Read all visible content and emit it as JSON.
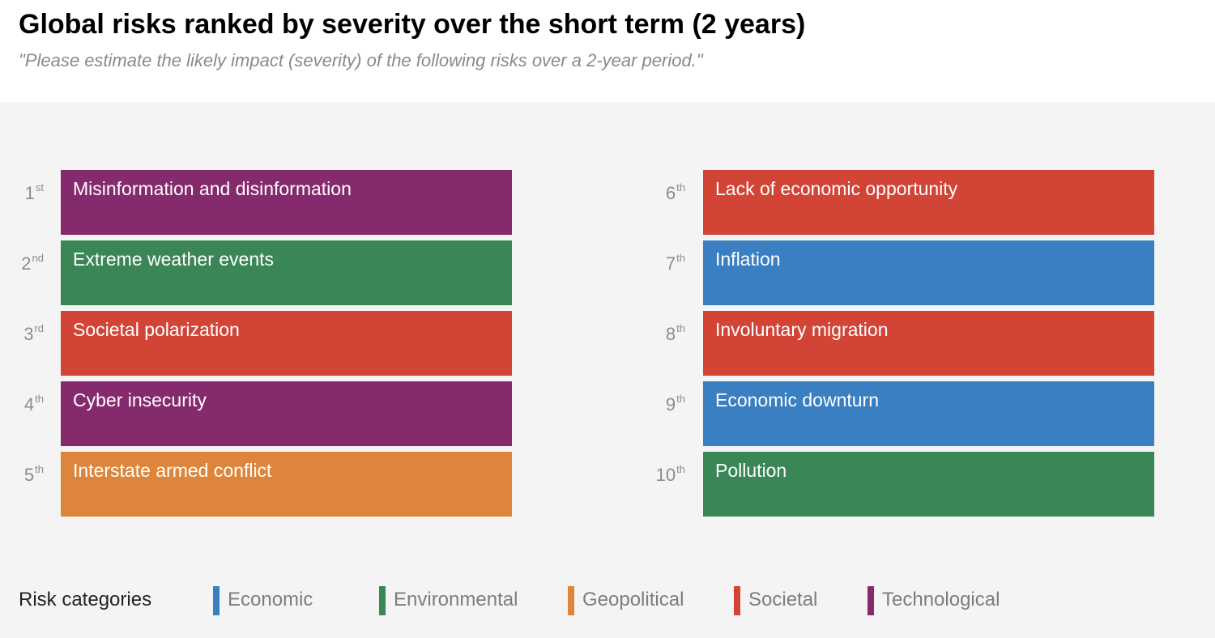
{
  "title": "Global risks ranked by severity over the short term (2 years)",
  "subtitle": "\"Please estimate the likely impact (severity) of the following risks over a 2-year period.\"",
  "colors": {
    "Economic": "#3a7fc1",
    "Environmental": "#3a8656",
    "Geopolitical": "#dc853b",
    "Societal": "#d24436",
    "Technological": "#852b6d"
  },
  "chart_data": {
    "type": "table",
    "title": "Global risks ranked by severity over the short term (2 years)",
    "risks": [
      {
        "rank": 1,
        "rank_num": "1",
        "rank_suffix": "st",
        "label": "Misinformation and disinformation",
        "category": "Technological"
      },
      {
        "rank": 2,
        "rank_num": "2",
        "rank_suffix": "nd",
        "label": "Extreme weather events",
        "category": "Environmental"
      },
      {
        "rank": 3,
        "rank_num": "3",
        "rank_suffix": "rd",
        "label": "Societal polarization",
        "category": "Societal"
      },
      {
        "rank": 4,
        "rank_num": "4",
        "rank_suffix": "th",
        "label": "Cyber insecurity",
        "category": "Technological"
      },
      {
        "rank": 5,
        "rank_num": "5",
        "rank_suffix": "th",
        "label": "Interstate armed conflict",
        "category": "Geopolitical"
      },
      {
        "rank": 6,
        "rank_num": "6",
        "rank_suffix": "th",
        "label": "Lack of economic opportunity",
        "category": "Societal"
      },
      {
        "rank": 7,
        "rank_num": "7",
        "rank_suffix": "th",
        "label": "Inflation",
        "category": "Economic"
      },
      {
        "rank": 8,
        "rank_num": "8",
        "rank_suffix": "th",
        "label": "Involuntary migration",
        "category": "Societal"
      },
      {
        "rank": 9,
        "rank_num": "9",
        "rank_suffix": "th",
        "label": "Economic downturn",
        "category": "Economic"
      },
      {
        "rank": 10,
        "rank_num": "10",
        "rank_suffix": "th",
        "label": "Pollution",
        "category": "Environmental"
      }
    ],
    "legend_title": "Risk categories",
    "legend": [
      "Economic",
      "Environmental",
      "Geopolitical",
      "Societal",
      "Technological"
    ],
    "legend_placement": "bottom"
  }
}
